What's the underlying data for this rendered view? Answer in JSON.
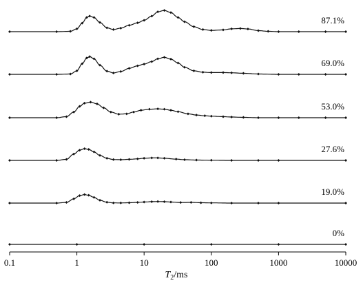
{
  "chart_data": {
    "type": "line",
    "title": "",
    "xlabel": {
      "italic": "T",
      "sub": "2",
      "rest": "/ms"
    },
    "ylabel": "",
    "xscale": "log",
    "xlim": [
      0.1,
      10000
    ],
    "x_ticks": [
      "0.1",
      "1",
      "10",
      "100",
      "1000",
      "10000"
    ],
    "x_tick_values": [
      0.1,
      1,
      10,
      100,
      1000,
      10000
    ],
    "grid": false,
    "layout": "vertically stacked offset curves, label at right end of each curve",
    "series_style": "dotted lines with diamond markers",
    "color": "#111111",
    "series": [
      {
        "name": "87.1%",
        "x": [
          0.1,
          0.5,
          0.8,
          1.0,
          1.2,
          1.4,
          1.55,
          1.8,
          2.2,
          2.8,
          3.5,
          4.5,
          6,
          8,
          10,
          13,
          16,
          20,
          25,
          32,
          40,
          55,
          75,
          100,
          150,
          200,
          270,
          350,
          500,
          700,
          1000,
          2000,
          5000,
          10000
        ],
        "y": [
          0,
          0,
          0.05,
          0.4,
          1.2,
          2.0,
          2.2,
          2.0,
          1.3,
          0.55,
          0.3,
          0.5,
          0.9,
          1.25,
          1.6,
          2.2,
          2.8,
          3.0,
          2.7,
          2.0,
          1.4,
          0.7,
          0.3,
          0.18,
          0.25,
          0.4,
          0.45,
          0.38,
          0.15,
          0.05,
          0,
          0,
          0,
          0
        ]
      },
      {
        "name": "69.0%",
        "x": [
          0.1,
          0.5,
          0.8,
          1.0,
          1.2,
          1.4,
          1.55,
          1.8,
          2.2,
          2.8,
          3.5,
          4.5,
          6,
          8,
          10,
          13,
          16,
          20,
          25,
          32,
          40,
          55,
          75,
          100,
          150,
          200,
          300,
          500,
          1000,
          2000,
          5000,
          10000
        ],
        "y": [
          0,
          0,
          0.05,
          0.5,
          1.5,
          2.3,
          2.5,
          2.2,
          1.3,
          0.45,
          0.2,
          0.4,
          0.85,
          1.2,
          1.45,
          1.8,
          2.2,
          2.4,
          2.15,
          1.6,
          1.0,
          0.5,
          0.3,
          0.25,
          0.25,
          0.22,
          0.15,
          0.05,
          0,
          0,
          0,
          0
        ]
      },
      {
        "name": "53.0%",
        "x": [
          0.1,
          0.5,
          0.7,
          0.9,
          1.1,
          1.3,
          1.6,
          2.0,
          2.5,
          3.2,
          4.2,
          5.5,
          7,
          9,
          12,
          16,
          20,
          25,
          32,
          45,
          60,
          80,
          100,
          150,
          200,
          300,
          500,
          1000,
          2000,
          5000,
          10000
        ],
        "y": [
          0,
          0,
          0.15,
          0.8,
          1.6,
          2.05,
          2.2,
          1.95,
          1.4,
          0.8,
          0.5,
          0.55,
          0.8,
          1.05,
          1.2,
          1.25,
          1.2,
          1.05,
          0.85,
          0.55,
          0.38,
          0.28,
          0.22,
          0.15,
          0.1,
          0.05,
          0,
          0,
          0,
          0,
          0
        ]
      },
      {
        "name": "27.6%",
        "x": [
          0.1,
          0.5,
          0.7,
          0.9,
          1.1,
          1.3,
          1.5,
          1.8,
          2.2,
          2.8,
          3.5,
          4.5,
          6,
          8,
          10,
          13,
          16,
          20,
          30,
          40,
          60,
          100,
          200,
          500,
          1000,
          10000
        ],
        "y": [
          0,
          0,
          0.15,
          0.9,
          1.45,
          1.65,
          1.55,
          1.2,
          0.7,
          0.3,
          0.12,
          0.1,
          0.15,
          0.22,
          0.3,
          0.35,
          0.35,
          0.3,
          0.18,
          0.1,
          0.05,
          0.02,
          0,
          0,
          0,
          0
        ]
      },
      {
        "name": "19.0%",
        "x": [
          0.1,
          0.5,
          0.7,
          0.9,
          1.1,
          1.3,
          1.5,
          1.8,
          2.2,
          2.8,
          3.5,
          4.5,
          6,
          8,
          10,
          13,
          16,
          20,
          25,
          35,
          50,
          70,
          100,
          200,
          500,
          1000,
          10000
        ],
        "y": [
          0,
          0,
          0.1,
          0.6,
          1.05,
          1.2,
          1.1,
          0.8,
          0.4,
          0.12,
          0.03,
          0.02,
          0.05,
          0.1,
          0.15,
          0.2,
          0.22,
          0.2,
          0.15,
          0.08,
          0.1,
          0.05,
          0.03,
          0,
          0,
          0,
          0
        ]
      },
      {
        "name": "0%",
        "x": [
          0.1,
          1,
          10,
          100,
          1000,
          10000
        ],
        "y": [
          0,
          0,
          0,
          0,
          0,
          0
        ]
      }
    ]
  }
}
